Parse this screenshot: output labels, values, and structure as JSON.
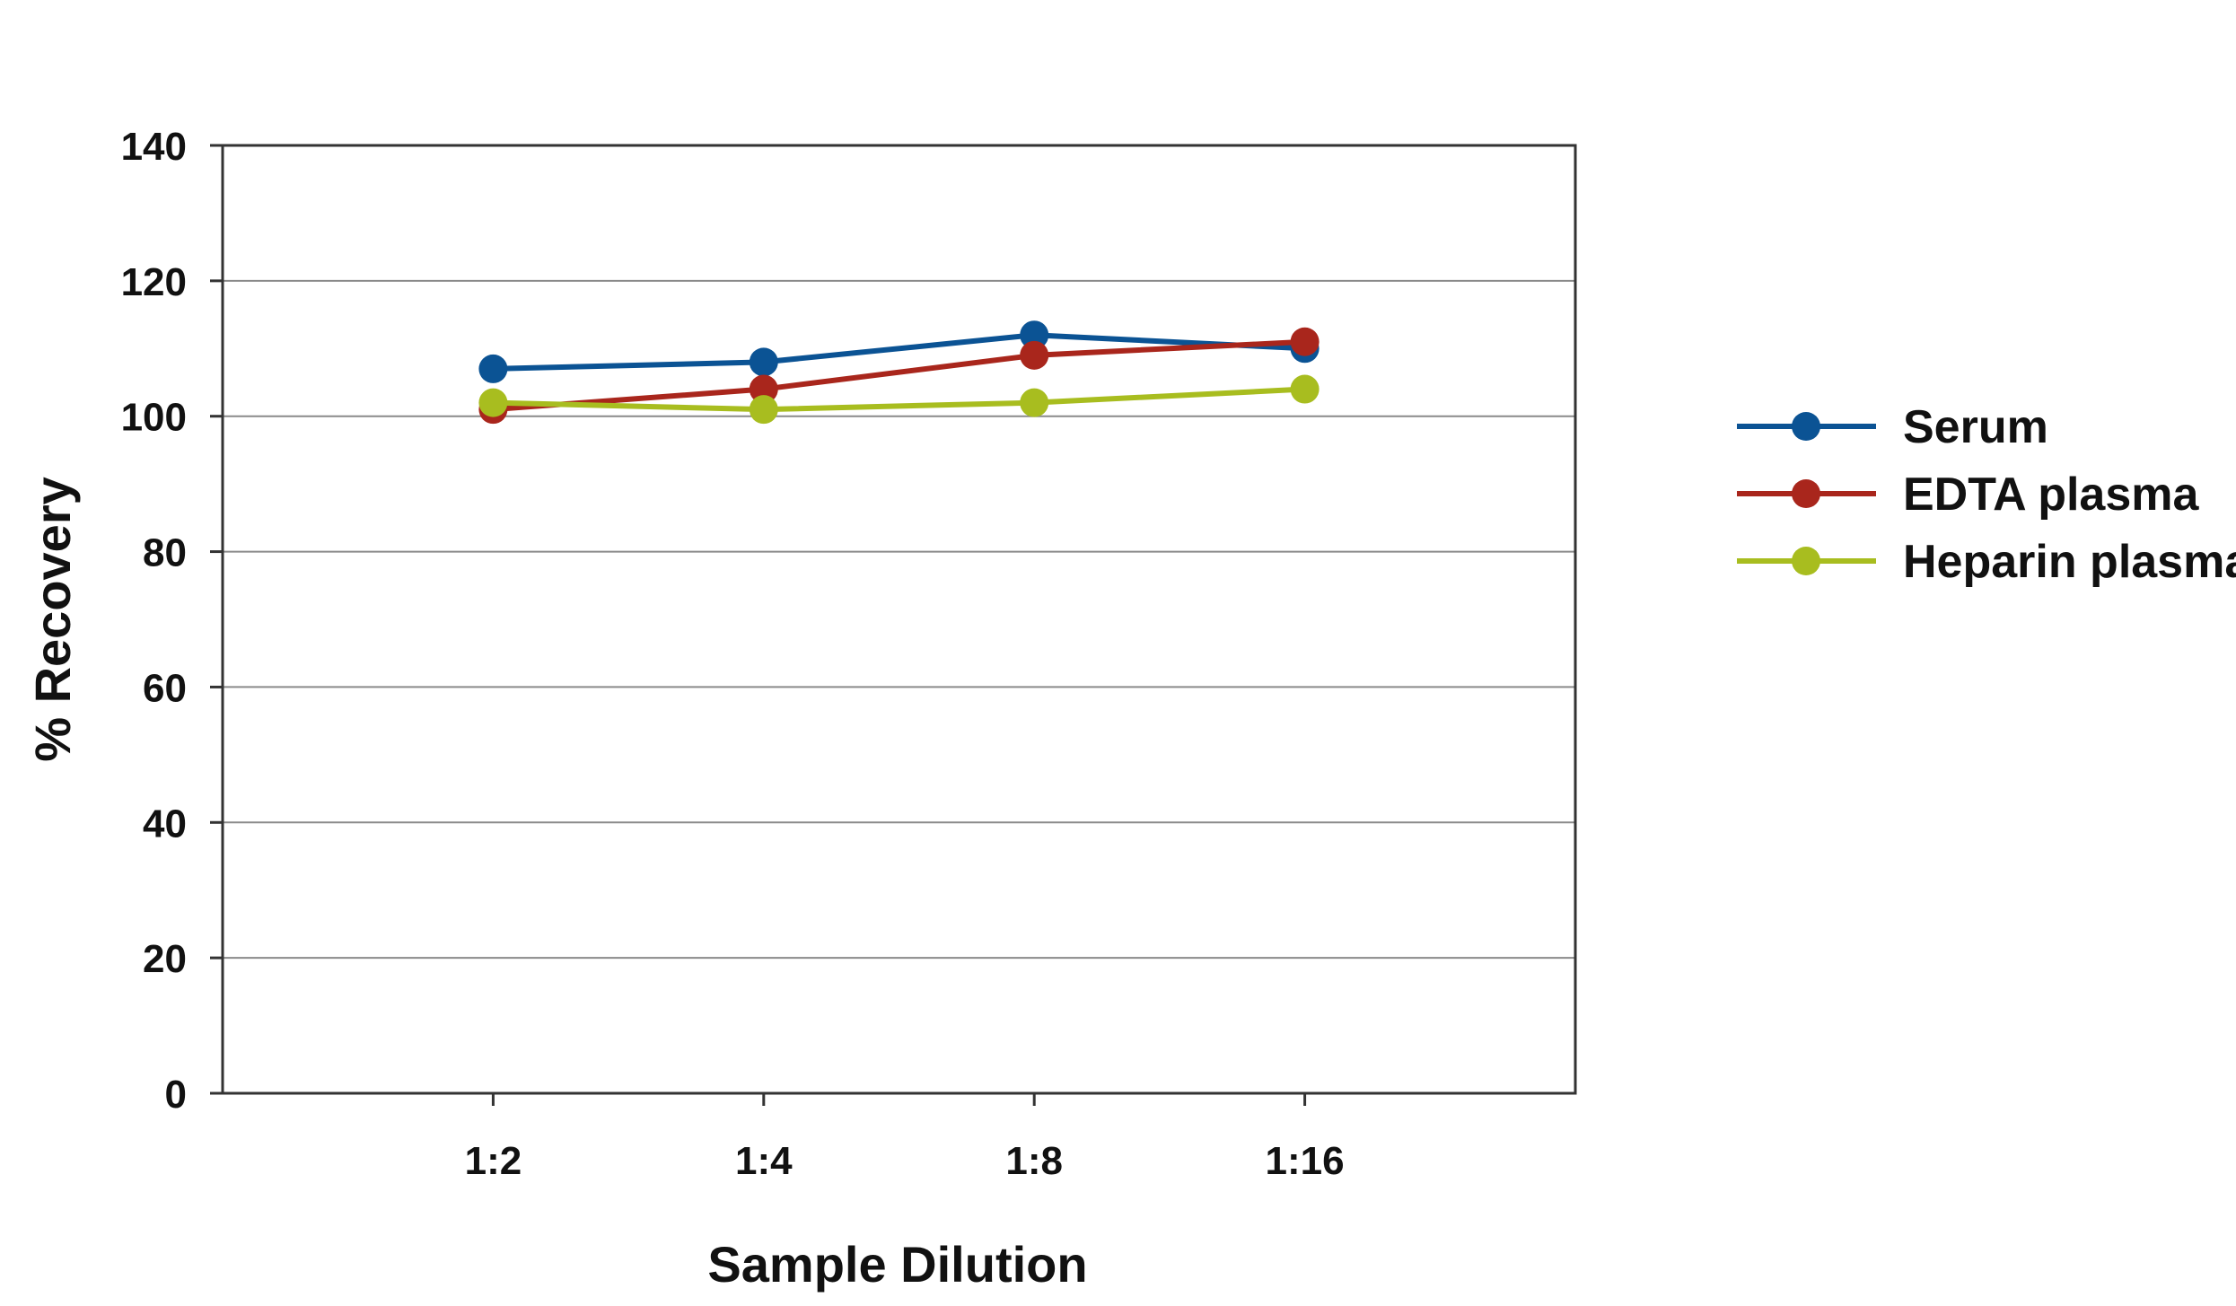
{
  "chart_data": {
    "type": "line",
    "categories": [
      "1:2",
      "1:4",
      "1:8",
      "1:16"
    ],
    "xlabel": "Sample Dilution",
    "ylabel": "% Recovery",
    "ylim": [
      0,
      140
    ],
    "yticks": [
      "0",
      "20",
      "40",
      "60",
      "80",
      "100",
      "120",
      "140"
    ],
    "grid": true,
    "legend_position": "right",
    "series": [
      {
        "name": "Serum",
        "color": "#0b5394",
        "values": [
          107,
          108,
          112,
          110
        ]
      },
      {
        "name": "EDTA plasma",
        "color": "#a9261c",
        "values": [
          101,
          104,
          109,
          111
        ]
      },
      {
        "name": "Heparin plasma",
        "color": "#a8bd1f",
        "values": [
          102,
          101,
          102,
          104
        ]
      }
    ]
  }
}
